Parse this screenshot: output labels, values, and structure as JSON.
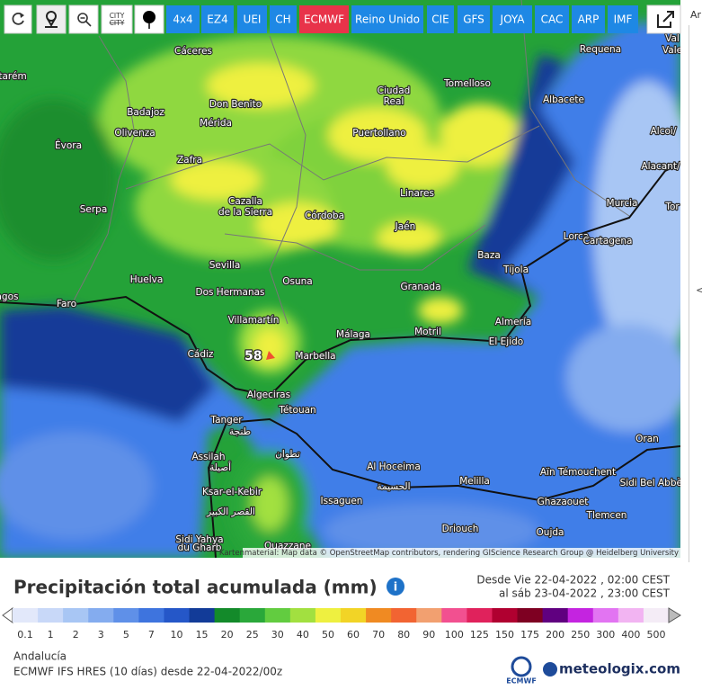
{
  "toolbar": {
    "city_icon": "CITY",
    "models": [
      "4x4",
      "EZ4",
      "UEI",
      "CH",
      "ECMWF",
      "Reino Unido",
      "CIE",
      "GFS",
      "JOYA",
      "CAC",
      "ARP",
      "IMF"
    ],
    "active": "ECMWF"
  },
  "side": {
    "label": "Ar",
    "arrow": "<"
  },
  "map": {
    "cities": [
      "Cáceres",
      "Requena",
      "tarém",
      "Tomelloso",
      "Badajoz",
      "Don Benito",
      "Ciudad",
      "Real",
      "Albacete",
      "Mérida",
      "Olivenza",
      "Puertollano",
      "Alcoi/",
      "Évora",
      "Zafra",
      "Alacant/",
      "Linares",
      "Cazalla",
      "de la Sierra",
      "Murcia",
      "Serpa",
      "Córdoba",
      "Jaén",
      "Lorca",
      "Cartagena",
      "Baza",
      "Tíjola",
      "Sevilla",
      "Huelva",
      "Osuna",
      "Dos Hermanas",
      "Granada",
      "agos",
      "Faro",
      "Villamartín",
      "Almería",
      "Málaga",
      "Motril",
      "El Ejido",
      "Cádiz",
      "Marbella",
      "Algeciras",
      "Tanger",
      "طنجة",
      "Tétouan",
      "تطوان",
      "Oran",
      "Al Hoceima",
      "الحسيمة",
      "Aïn Témouchent",
      "Sidi Bel Abbès",
      "Assilah",
      "أصيلة",
      "Melilla",
      "Ghazaouet",
      "Ksar-el-Kebir",
      "القصر الكبير",
      "Issaguen",
      "Tlemcen",
      "Driouch",
      "Oujda",
      "Sidi Yahya",
      "du Gharb",
      "Ouazzane",
      "Vale",
      "Val",
      "Tor"
    ],
    "max_value": 58,
    "attribution": "Kartenmaterial: Map data © OpenStreetMap contributors, rendering GIScience Research Group @ Heidelberg University"
  },
  "panel": {
    "title": "Precipitación total acumulada (mm)",
    "period_from": "Desde Vie 22-04-2022 , 02:00 CEST",
    "period_to": "al sáb 23-04-2022 , 23:00 CEST",
    "region": "Andalucía",
    "model_run": "ECMWF IFS HRES (10 días) desde 22-04-2022/00z",
    "logo": "meteologix.com",
    "logo_small": "ECMWF"
  },
  "legend": {
    "values": [
      0.1,
      1,
      2,
      3,
      5,
      7,
      10,
      15,
      20,
      25,
      30,
      40,
      50,
      60,
      70,
      80,
      90,
      100,
      125,
      150,
      175,
      200,
      250,
      300,
      400,
      500
    ],
    "colors": [
      "#e2e8fa",
      "#c8d8f8",
      "#a8c6f4",
      "#84acef",
      "#5f90e8",
      "#3e74de",
      "#2557c8",
      "#123b98",
      "#138a2a",
      "#2aa83a",
      "#62cc40",
      "#a2e040",
      "#eef040",
      "#f2d426",
      "#f08a22",
      "#f26432",
      "#f2a070",
      "#f25090",
      "#e0225c",
      "#b00030",
      "#7e0022",
      "#600080",
      "#c424e0",
      "#e274f2",
      "#f2b4f2",
      "#f4ecf6"
    ]
  }
}
